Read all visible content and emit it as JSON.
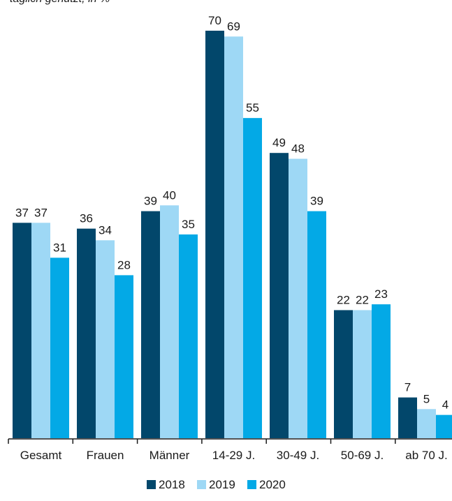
{
  "chart_data": {
    "type": "bar",
    "subtitle": "täglich genutzt, in %",
    "categories": [
      "Gesamt",
      "Frauen",
      "Männer",
      "14-29 J.",
      "30-49 J.",
      "50-69 J.",
      "ab 70 J."
    ],
    "series": [
      {
        "name": "2018",
        "color": "#02476b",
        "values": [
          37,
          36,
          39,
          70,
          49,
          22,
          7
        ]
      },
      {
        "name": "2019",
        "color": "#9ed8f5",
        "values": [
          37,
          34,
          40,
          69,
          48,
          22,
          5
        ]
      },
      {
        "name": "2020",
        "color": "#03a9e6",
        "values": [
          31,
          28,
          35,
          55,
          39,
          23,
          4
        ]
      }
    ],
    "ylim": [
      0,
      70
    ],
    "grid": false,
    "legend_position": "bottom-center",
    "data_labels": true
  }
}
